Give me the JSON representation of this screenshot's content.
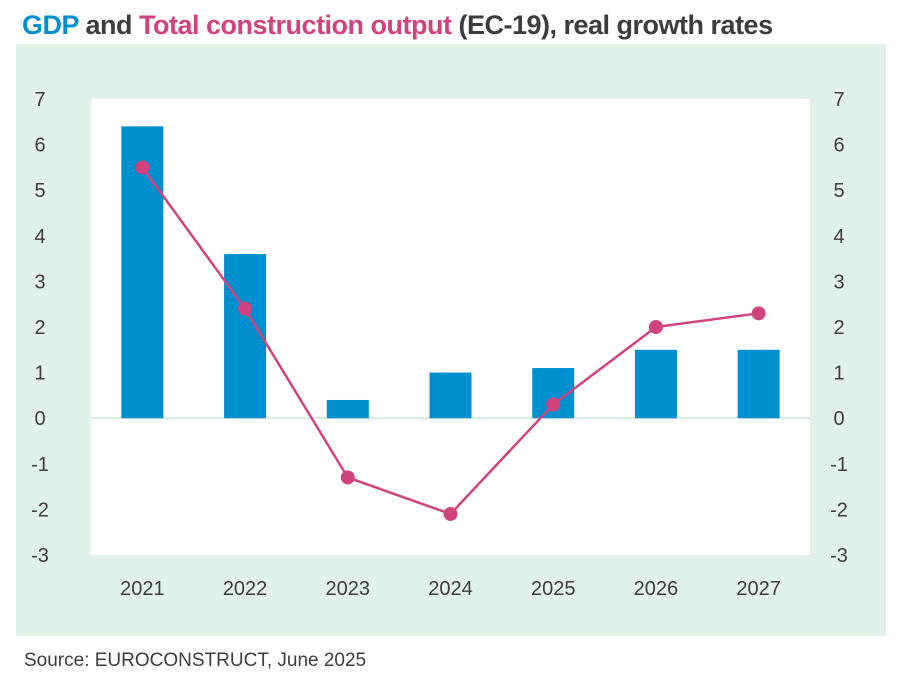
{
  "title": {
    "part1": "GDP",
    "part2": " and ",
    "part3": "Total construction output",
    "part4": " (EC-19), real growth rates"
  },
  "source": "Source: EUROCONSTRUCT, June 2025",
  "colors": {
    "gdp": "#0090d0",
    "construction": "#d1437f",
    "panel": "#e1f2e8",
    "plot": "#ffffff",
    "text": "#3d3d3d"
  },
  "chart_data": {
    "type": "bar",
    "title": "GDP and Total construction output (EC-19), real growth rates",
    "categories": [
      "2021",
      "2022",
      "2023",
      "2024",
      "2025",
      "2026",
      "2027"
    ],
    "series": [
      {
        "name": "GDP",
        "type": "bar",
        "values": [
          6.4,
          3.6,
          0.4,
          1.0,
          1.1,
          1.5,
          1.5
        ]
      },
      {
        "name": "Total construction output",
        "type": "line",
        "values": [
          5.5,
          2.4,
          -1.3,
          -2.1,
          0.3,
          2.0,
          2.3
        ]
      }
    ],
    "ylim": [
      -3,
      7
    ],
    "yticks": [
      "7",
      "6",
      "5",
      "4",
      "3",
      "2",
      "1",
      "0",
      "-1",
      "-2",
      "-3"
    ],
    "y2ticks": [
      "7",
      "6",
      "5",
      "4",
      "3",
      "2",
      "1",
      "0",
      "-1",
      "-2",
      "-3"
    ],
    "xlabel": "",
    "ylabel": "",
    "grid": false,
    "legend": "none (colored title words)"
  }
}
